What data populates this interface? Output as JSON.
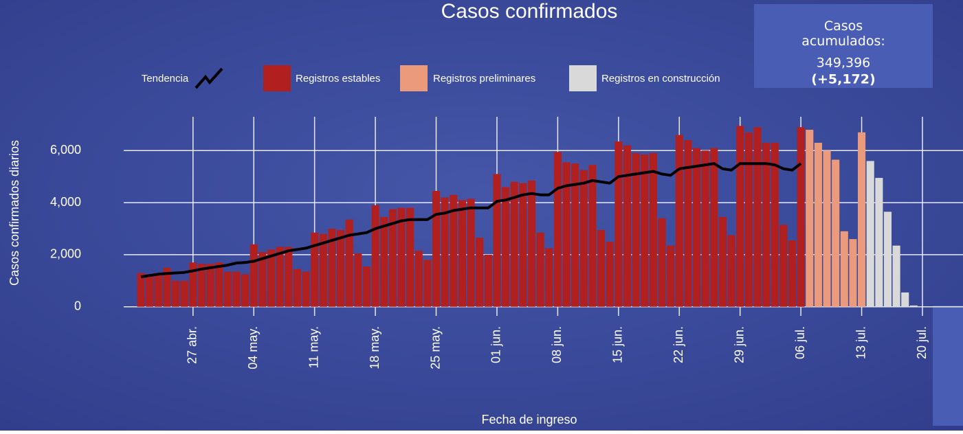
{
  "chart_data": {
    "type": "bar",
    "title": "Casos confirmados",
    "summary_box": {
      "label": "Casos acumulados:",
      "total": "349,396",
      "change": "(+5,172)"
    },
    "ylabel": "Casos confirmados diarios",
    "xlabel": "Fecha de ingreso",
    "categories": [
      null,
      null,
      null,
      null,
      null,
      null,
      "27 abr.",
      null,
      null,
      null,
      null,
      null,
      null,
      "04 may.",
      null,
      null,
      null,
      null,
      null,
      null,
      "11 may.",
      null,
      null,
      null,
      null,
      null,
      null,
      "18 may.",
      null,
      null,
      null,
      null,
      null,
      null,
      "25 may.",
      null,
      null,
      null,
      null,
      null,
      null,
      "01 jun.",
      null,
      null,
      null,
      null,
      null,
      null,
      "08 jun.",
      null,
      null,
      null,
      null,
      null,
      null,
      "15 jun.",
      null,
      null,
      null,
      null,
      null,
      null,
      "22 jun.",
      null,
      null,
      null,
      null,
      null,
      null,
      "29 jun.",
      null,
      null,
      null,
      null,
      null,
      null,
      "06 jul.",
      null,
      null,
      null,
      null,
      null,
      null,
      "13 jul.",
      null,
      null,
      null,
      null,
      null,
      null,
      "20 jul."
    ],
    "series": [
      {
        "name": "Tendencia",
        "type": "line",
        "color": "#000000",
        "values": [
          1150,
          1200,
          1250,
          1280,
          1300,
          1320,
          1380,
          1450,
          1500,
          1550,
          1600,
          1680,
          1700,
          1750,
          1850,
          1950,
          2050,
          2150,
          2200,
          2250,
          2350,
          2450,
          2550,
          2650,
          2750,
          2800,
          2850,
          3000,
          3100,
          3200,
          3300,
          3350,
          3350,
          3350,
          3550,
          3600,
          3700,
          3750,
          3800,
          3800,
          3800,
          4050,
          4100,
          4200,
          4300,
          4350,
          4300,
          4300,
          4550,
          4650,
          4700,
          4750,
          4850,
          4800,
          4750,
          5000,
          5050,
          5100,
          5150,
          5200,
          5100,
          5050,
          5300,
          5350,
          5400,
          5450,
          5500,
          5300,
          5250,
          5500,
          5500,
          5500,
          5500,
          5450,
          5300,
          5250,
          5500,
          null,
          null,
          null,
          null,
          null,
          null,
          null,
          null,
          null,
          null,
          null,
          null,
          null,
          null
        ]
      },
      {
        "name": "Registros estables",
        "type": "bar",
        "color": "#b21f1f",
        "values": [
          1300,
          1250,
          1300,
          1500,
          1000,
          1000,
          1700,
          1650,
          1650,
          1700,
          1350,
          1350,
          1250,
          2400,
          2100,
          2200,
          2300,
          2300,
          1450,
          1350,
          2850,
          2800,
          3000,
          2950,
          3350,
          2050,
          1550,
          3900,
          3450,
          3750,
          3800,
          3800,
          2150,
          1800,
          4450,
          4200,
          4300,
          4100,
          4150,
          2650,
          2000,
          5100,
          4600,
          4800,
          4750,
          4850,
          2850,
          2250,
          5950,
          5550,
          5500,
          5250,
          5450,
          2950,
          2500,
          6350,
          6200,
          5900,
          5850,
          5900,
          3400,
          2350,
          6600,
          6400,
          6100,
          6000,
          6100,
          3450,
          2750,
          6950,
          6700,
          6900,
          6300,
          6300,
          3150,
          2550,
          6900,
          null,
          null,
          null,
          null,
          null,
          null,
          null,
          null,
          null,
          null,
          null,
          null,
          null,
          null
        ]
      },
      {
        "name": "Registros preliminares",
        "type": "bar",
        "color": "#eb9a7c",
        "values": [
          null,
          null,
          null,
          null,
          null,
          null,
          null,
          null,
          null,
          null,
          null,
          null,
          null,
          null,
          null,
          null,
          null,
          null,
          null,
          null,
          null,
          null,
          null,
          null,
          null,
          null,
          null,
          null,
          null,
          null,
          null,
          null,
          null,
          null,
          null,
          null,
          null,
          null,
          null,
          null,
          null,
          null,
          null,
          null,
          null,
          null,
          null,
          null,
          null,
          null,
          null,
          null,
          null,
          null,
          null,
          null,
          null,
          null,
          null,
          null,
          null,
          null,
          null,
          null,
          null,
          null,
          null,
          null,
          null,
          null,
          null,
          null,
          null,
          null,
          null,
          null,
          null,
          6800,
          6300,
          6000,
          5650,
          2900,
          2600,
          6700,
          null,
          null,
          null,
          null,
          null,
          null,
          null
        ]
      },
      {
        "name": "Registros en construcción",
        "type": "bar",
        "color": "#d9d9d9",
        "values": [
          null,
          null,
          null,
          null,
          null,
          null,
          null,
          null,
          null,
          null,
          null,
          null,
          null,
          null,
          null,
          null,
          null,
          null,
          null,
          null,
          null,
          null,
          null,
          null,
          null,
          null,
          null,
          null,
          null,
          null,
          null,
          null,
          null,
          null,
          null,
          null,
          null,
          null,
          null,
          null,
          null,
          null,
          null,
          null,
          null,
          null,
          null,
          null,
          null,
          null,
          null,
          null,
          null,
          null,
          null,
          null,
          null,
          null,
          null,
          null,
          null,
          null,
          null,
          null,
          null,
          null,
          null,
          null,
          null,
          null,
          null,
          null,
          null,
          null,
          null,
          null,
          null,
          null,
          null,
          null,
          null,
          null,
          null,
          null,
          5600,
          4950,
          3650,
          2350,
          550,
          50,
          null
        ]
      }
    ],
    "ylim": [
      -350,
      7300
    ],
    "yticks": [
      0,
      {
        "value": 2000,
        "label": "2,000"
      },
      {
        "value": 4000,
        "label": "4,000"
      },
      {
        "value": 6000,
        "label": "6,000"
      }
    ],
    "grid": true
  }
}
